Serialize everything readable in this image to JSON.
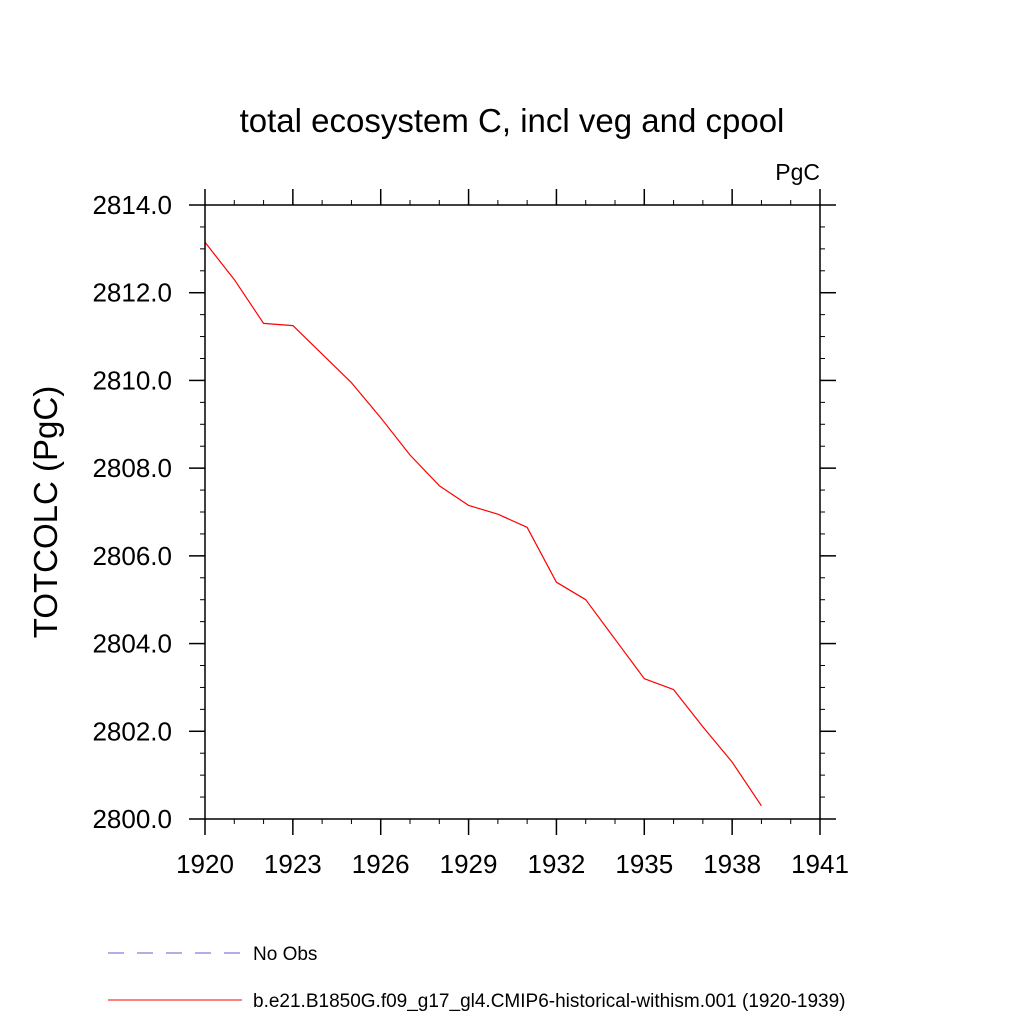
{
  "chart_data": {
    "type": "line",
    "title": "total ecosystem C, incl veg and cpool",
    "units_label": "PgC",
    "ylabel": "TOTCOLC  (PgC)",
    "xlabel": "",
    "xlim": [
      1920,
      1941
    ],
    "ylim": [
      2800.0,
      2814.0
    ],
    "x_ticks": [
      "1920",
      "1923",
      "1926",
      "1929",
      "1932",
      "1935",
      "1938",
      "1941"
    ],
    "y_ticks": [
      "2800.0",
      "2802.0",
      "2804.0",
      "2806.0",
      "2808.0",
      "2810.0",
      "2812.0",
      "2814.0"
    ],
    "grid": false,
    "series": [
      {
        "name": "b.e21.B1850G.f09_g17_gl4.CMIP6-historical-withism.001 (1920-1939)",
        "color": "#ff0000",
        "style": "solid",
        "x": [
          1920,
          1921,
          1922,
          1923,
          1924,
          1925,
          1926,
          1927,
          1928,
          1929,
          1930,
          1931,
          1932,
          1933,
          1934,
          1935,
          1936,
          1937,
          1938,
          1939
        ],
        "y": [
          2813.15,
          2812.3,
          2811.3,
          2811.25,
          2810.6,
          2809.95,
          2809.15,
          2808.3,
          2807.6,
          2807.15,
          2806.95,
          2806.65,
          2805.4,
          2805.0,
          2804.1,
          2803.2,
          2802.95,
          2802.1,
          2801.3,
          2800.3
        ]
      }
    ],
    "legend": {
      "placement": "bottom-left",
      "entries": [
        {
          "label": "No Obs",
          "color": "#6a5acd",
          "style": "dashed"
        },
        {
          "label": "b.e21.B1850G.f09_g17_gl4.CMIP6-historical-withism.001 (1920-1939)",
          "color": "#ff0000",
          "style": "solid"
        }
      ]
    }
  }
}
